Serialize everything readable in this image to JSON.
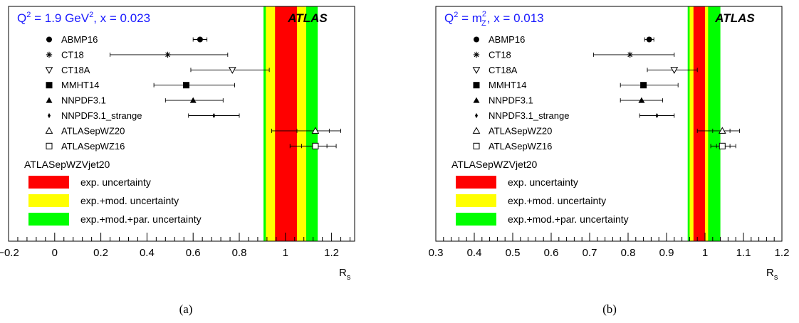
{
  "chart_data": [
    {
      "type": "scatter",
      "panel_label": "(a)",
      "header_pre": "Q",
      "header_sup": "2",
      "header_mid": " = 1.9 GeV",
      "header_sup2": "2",
      "header_post": ", x = 0.023",
      "experiment": "ATLAS",
      "xlabel_main": "R",
      "xlabel_sub": "s",
      "xlim": [
        -0.2,
        1.3
      ],
      "xticks": [
        -0.2,
        0,
        0.2,
        0.4,
        0.6,
        0.8,
        1,
        1.2
      ],
      "xtick_labels": [
        "−0.2",
        "0",
        "0.2",
        "0.4",
        "0.6",
        "0.8",
        "1",
        "1.2"
      ],
      "reference_name": "ATLASepWZVjet20",
      "bands": {
        "exp": [
          0.955,
          1.05
        ],
        "exp_mod": [
          0.915,
          1.09
        ],
        "exp_mod_par": [
          0.905,
          1.14
        ]
      },
      "band_labels": [
        "exp. uncertainty",
        "exp.+mod. uncertainty",
        "exp.+mod.+par. uncertainty"
      ],
      "points": [
        {
          "name": "ABMP16",
          "marker": "circle",
          "value": 0.63,
          "err_lo": 0.03,
          "err_hi": 0.03
        },
        {
          "name": "CT18",
          "marker": "star",
          "value": 0.49,
          "err_lo": 0.25,
          "err_hi": 0.26
        },
        {
          "name": "CT18A",
          "marker": "triangle-down-open",
          "value": 0.77,
          "err_lo": 0.18,
          "err_hi": 0.16
        },
        {
          "name": "MMHT14",
          "marker": "square",
          "value": 0.57,
          "err_lo": 0.14,
          "err_hi": 0.21
        },
        {
          "name": "NNPDF3.1",
          "marker": "triangle-up",
          "value": 0.6,
          "err_lo": 0.12,
          "err_hi": 0.13
        },
        {
          "name": "NNPDF3.1_strange",
          "marker": "diamond",
          "value": 0.69,
          "err_lo": 0.11,
          "err_hi": 0.11
        },
        {
          "name": "ATLASepWZ20",
          "marker": "triangle-up-open",
          "value": 1.13,
          "err_lo": 0.19,
          "err_hi": 0.11,
          "err_inner_lo": 0.08,
          "err_inner_hi": 0.06
        },
        {
          "name": "ATLASepWZ16",
          "marker": "square-open",
          "value": 1.13,
          "err_lo": 0.11,
          "err_hi": 0.09,
          "err_inner_lo": 0.06,
          "err_inner_hi": 0.05
        }
      ]
    },
    {
      "type": "scatter",
      "panel_label": "(b)",
      "header_pre": "Q",
      "header_sup": "2",
      "header_mid": " = m",
      "header_sup2": "2",
      "header_sub2": "Z",
      "header_post": ", x = 0.013",
      "experiment": "ATLAS",
      "xlabel_main": "R",
      "xlabel_sub": "s",
      "xlim": [
        0.3,
        1.2
      ],
      "xticks": [
        0.3,
        0.4,
        0.5,
        0.6,
        0.7,
        0.8,
        0.9,
        1,
        1.1,
        1.2
      ],
      "xtick_labels": [
        "0.3",
        "0.4",
        "0.5",
        "0.6",
        "0.7",
        "0.8",
        "0.9",
        "1",
        "1.1",
        "1.2"
      ],
      "reference_name": "ATLASepWZVjet20",
      "bands": {
        "exp": [
          0.97,
          1.0
        ],
        "exp_mod": [
          0.96,
          1.008
        ],
        "exp_mod_par": [
          0.955,
          1.04
        ]
      },
      "band_labels": [
        "exp. uncertainty",
        "exp.+mod. uncertainty",
        "exp.+mod.+par. uncertainty"
      ],
      "points": [
        {
          "name": "ABMP16",
          "marker": "circle",
          "value": 0.855,
          "err_lo": 0.012,
          "err_hi": 0.012
        },
        {
          "name": "CT18",
          "marker": "star",
          "value": 0.805,
          "err_lo": 0.095,
          "err_hi": 0.115
        },
        {
          "name": "CT18A",
          "marker": "triangle-down-open",
          "value": 0.92,
          "err_lo": 0.07,
          "err_hi": 0.06
        },
        {
          "name": "MMHT14",
          "marker": "square",
          "value": 0.84,
          "err_lo": 0.06,
          "err_hi": 0.09
        },
        {
          "name": "NNPDF3.1",
          "marker": "triangle-up",
          "value": 0.835,
          "err_lo": 0.055,
          "err_hi": 0.055
        },
        {
          "name": "NNPDF3.1_strange",
          "marker": "diamond",
          "value": 0.875,
          "err_lo": 0.045,
          "err_hi": 0.045
        },
        {
          "name": "ATLASepWZ20",
          "marker": "triangle-up-open",
          "value": 1.045,
          "err_lo": 0.065,
          "err_hi": 0.045,
          "err_inner_lo": 0.025,
          "err_inner_hi": 0.02
        },
        {
          "name": "ATLASepWZ16",
          "marker": "square-open",
          "value": 1.045,
          "err_lo": 0.03,
          "err_hi": 0.035,
          "err_inner_lo": 0.015,
          "err_inner_hi": 0.02
        }
      ]
    }
  ],
  "colors": {
    "exp": "#ff0000",
    "exp_mod": "#ffff00",
    "exp_mod_par": "#00ff00",
    "header": "#1a1aff"
  }
}
